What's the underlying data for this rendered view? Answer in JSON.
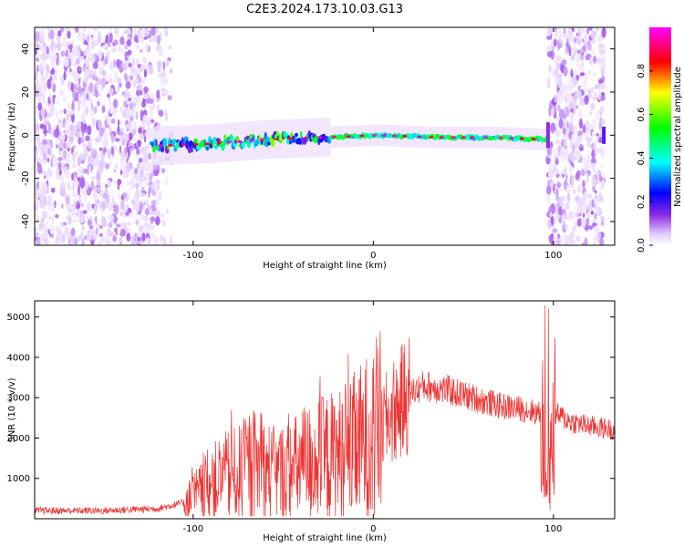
{
  "title": "C2E3.2024.173.10.03.G13",
  "chart_data": [
    {
      "type": "heatmap",
      "xlabel": "Height of straight line (km)",
      "ylabel": "Frequency (Hz)",
      "xlim": [
        -188,
        134
      ],
      "ylim": [
        -51,
        50
      ],
      "x_ticks": [
        -100,
        0,
        100
      ],
      "y_ticks": [
        -40,
        -20,
        0,
        20,
        40
      ],
      "colorbar": {
        "label": "Normalized spectral amplitude",
        "range": [
          0,
          1
        ],
        "ticks": [
          "0.0",
          "0.2",
          "0.4",
          "0.6",
          "0.8"
        ]
      },
      "regions": [
        {
          "name": "noise",
          "x": [
            -188,
            -112
          ],
          "y": [
            -50,
            50
          ],
          "amplitude": 0.15
        },
        {
          "name": "signal",
          "x": [
            -123,
            97
          ],
          "center_freq_hz": [
            -5,
            -4,
            -2,
            -1,
            0,
            -1,
            -1,
            -2
          ],
          "amplitude": 0.5
        },
        {
          "name": "noise",
          "x": [
            97,
            128
          ],
          "y": [
            -50,
            50
          ],
          "amplitude": 0.15
        }
      ],
      "colors": [
        "#ffffff",
        "#e3ccff",
        "#8a2be2",
        "#0000ff",
        "#00ffff",
        "#00ff00",
        "#ffff00",
        "#ff0000",
        "#ff00ff"
      ]
    },
    {
      "type": "line",
      "xlabel": "Height of straight line (km)",
      "ylabel": "SNR (10 * v/v)",
      "xlim": [
        -188,
        134
      ],
      "ylim": [
        0,
        5400
      ],
      "x_ticks": [
        -100,
        0,
        100
      ],
      "y_ticks": [
        1000,
        2000,
        3000,
        4000,
        5000
      ],
      "color": "#ef3232",
      "x": [
        -188,
        -150,
        -120,
        -105,
        -95,
        -85,
        -75,
        -65,
        -55,
        -45,
        -35,
        -25,
        -15,
        -5,
        5,
        12,
        20,
        28,
        40,
        55,
        70,
        85,
        93,
        97,
        101,
        110,
        120,
        134
      ],
      "y": [
        200,
        200,
        250,
        400,
        700,
        1000,
        1100,
        1300,
        1100,
        1200,
        1400,
        1500,
        1600,
        1900,
        2300,
        2700,
        3100,
        3300,
        3200,
        3000,
        2800,
        2700,
        2600,
        1000,
        2600,
        2400,
        2300,
        2200
      ]
    }
  ]
}
